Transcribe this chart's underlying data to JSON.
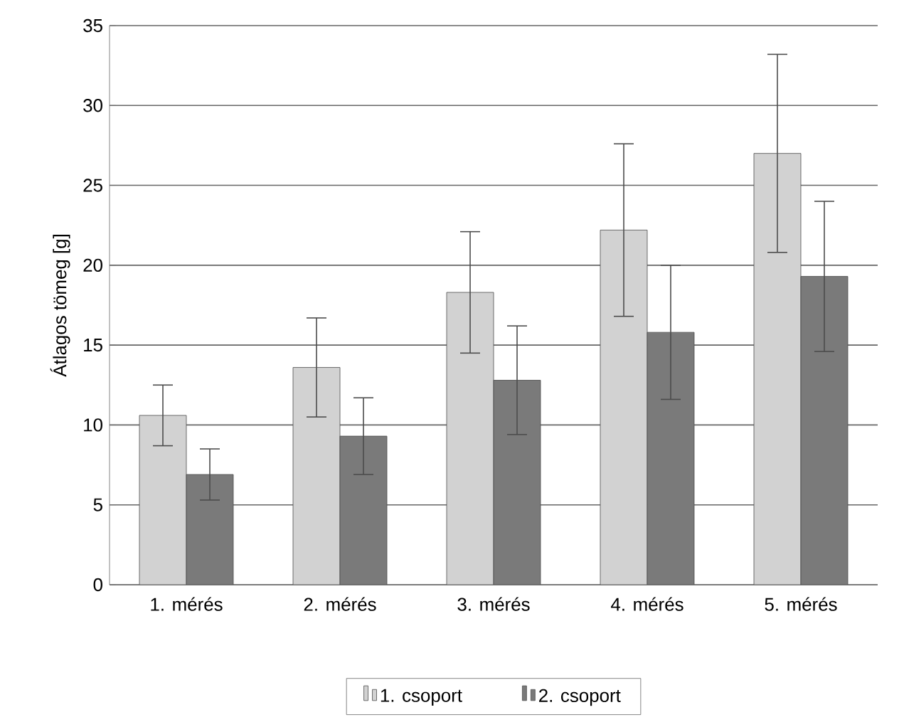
{
  "chart_data": {
    "type": "bar",
    "ylabel": "Átlagos tömeg [g]",
    "categories": [
      "1. mérés",
      "2. mérés",
      "3. mérés",
      "4. mérés",
      "5. mérés"
    ],
    "series": [
      {
        "name": "1. csoport",
        "color": "#d2d2d2",
        "values": [
          10.6,
          13.6,
          18.3,
          22.2,
          27.0
        ],
        "errors": [
          1.9,
          3.1,
          3.8,
          5.4,
          6.2
        ]
      },
      {
        "name": "2. csoport",
        "color": "#7a7a7a",
        "values": [
          6.9,
          9.3,
          12.8,
          15.8,
          19.3
        ],
        "errors": [
          1.6,
          2.4,
          3.4,
          4.2,
          4.7
        ]
      }
    ],
    "ylim": [
      0,
      35
    ],
    "yticks": [
      0,
      5,
      10,
      15,
      20,
      25,
      30,
      35
    ],
    "grid": "y",
    "legend": "bottom"
  }
}
